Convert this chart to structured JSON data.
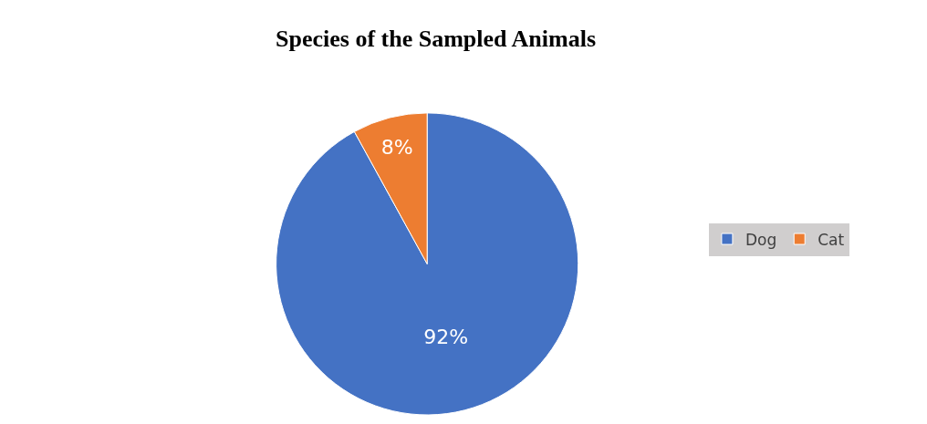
{
  "chart_data": {
    "type": "pie",
    "title": "Species of the Sampled Animals",
    "categories": [
      "Dog",
      "Cat"
    ],
    "values": [
      92,
      8
    ],
    "colors": [
      "#4472c4",
      "#ed7d31"
    ],
    "value_labels": [
      "92%",
      "8%"
    ],
    "legend": "right"
  }
}
